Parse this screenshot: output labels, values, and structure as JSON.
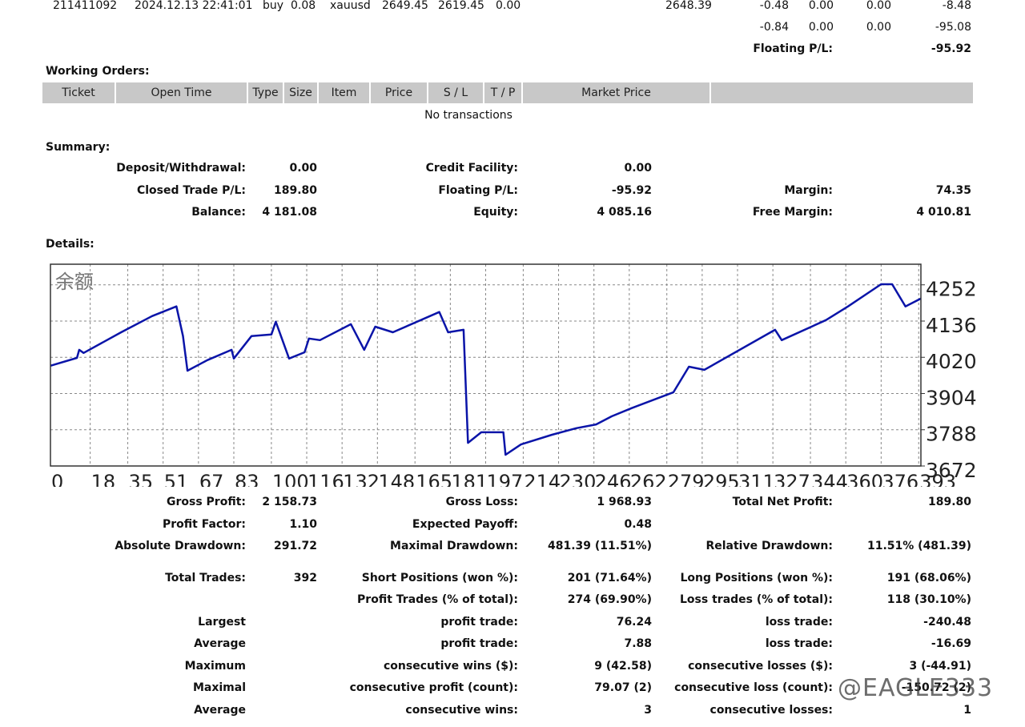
{
  "positions": {
    "row": [
      "211411092",
      "2024.12.13 22:41:01",
      "buy",
      "0.08",
      "xauusd",
      "2649.45",
      "2619.45",
      "0.00",
      "2648.39",
      "-0.48",
      "0.00",
      "0.00",
      "-8.48"
    ],
    "totals": [
      "-0.84",
      "0.00",
      "0.00",
      "-95.08"
    ],
    "floating": {
      "label": "Floating P/L:",
      "value": "-95.92"
    }
  },
  "working_orders": {
    "title": "Working Orders:",
    "headers": [
      "Ticket",
      "Open Time",
      "Type",
      "Size",
      "Item",
      "Price",
      "S / L",
      "T / P",
      "Market Price"
    ],
    "empty": "No transactions"
  },
  "summary": {
    "title": "Summary:",
    "rows": [
      {
        "left": [
          "Deposit/Withdrawal:",
          "0.00"
        ],
        "middle": [
          "Credit Facility:",
          "0.00"
        ]
      },
      {
        "left": [
          "Closed Trade P/L:",
          "189.80"
        ],
        "middle": [
          "Floating P/L:",
          "-95.92"
        ],
        "right": [
          "Margin:",
          "74.35"
        ]
      },
      {
        "left": [
          "Balance:",
          "4 181.08"
        ],
        "middle": [
          "Equity:",
          "4 085.16"
        ],
        "right": [
          "Free Margin:",
          "4 010.81"
        ]
      }
    ]
  },
  "details": {
    "title": "Details:",
    "rows": [
      {
        "left": [
          "Gross Profit:",
          "2 158.73"
        ],
        "middle": [
          "Gross Loss:",
          "1 968.93"
        ],
        "right": [
          "Total Net Profit:",
          "189.80"
        ]
      },
      {
        "left": [
          "Profit Factor:",
          "1.10"
        ],
        "middle": [
          "Expected Payoff:",
          "0.48"
        ]
      },
      {
        "left": [
          "Absolute Drawdown:",
          "291.72"
        ],
        "middle": [
          "Maximal Drawdown:",
          "481.39 (11.51%)"
        ],
        "right": [
          "Relative Drawdown:",
          "11.51% (481.39)"
        ]
      },
      {
        "left": [
          "Total Trades:",
          "392"
        ],
        "middle": [
          "Short Positions (won %):",
          "201 (71.64%)"
        ],
        "right": [
          "Long Positions (won %):",
          "191 (68.06%)"
        ]
      },
      {
        "middle": [
          "Profit Trades (% of total):",
          "274 (69.90%)"
        ],
        "right": [
          "Loss trades (% of total):",
          "118 (30.10%)"
        ]
      },
      {
        "left": [
          "Largest"
        ],
        "middle": [
          "profit trade:",
          "76.24"
        ],
        "right": [
          "loss trade:",
          "-240.48"
        ]
      },
      {
        "left": [
          "Average"
        ],
        "middle": [
          "profit trade:",
          "7.88"
        ],
        "right": [
          "loss trade:",
          "-16.69"
        ]
      },
      {
        "left": [
          "Maximum"
        ],
        "middle": [
          "consecutive wins ($):",
          "9 (42.58)"
        ],
        "right": [
          "consecutive losses ($):",
          "3 (-44.91)"
        ]
      },
      {
        "left": [
          "Maximal"
        ],
        "middle": [
          "consecutive profit (count):",
          "79.07 (2)"
        ],
        "right": [
          "consecutive loss (count):",
          "-150.72 (2)"
        ]
      },
      {
        "left": [
          "Average"
        ],
        "middle": [
          "consecutive wins:",
          "3"
        ],
        "right": [
          "consecutive losses:",
          "1"
        ]
      }
    ]
  },
  "chart_data": {
    "type": "line",
    "title": "余额",
    "color": "#0a14a8",
    "x": [
      0,
      12,
      13,
      15,
      32,
      46,
      57,
      60,
      62,
      71,
      82,
      83,
      91,
      100,
      102,
      105,
      108,
      115,
      117,
      122,
      136,
      142,
      147,
      155,
      176,
      180,
      187,
      189,
      195,
      205,
      206,
      213,
      227,
      238,
      247,
      254,
      263,
      282,
      289,
      296,
      328,
      331,
      351,
      361,
      376,
      381,
      387,
      394
    ],
    "values": [
      3993,
      4018,
      4044,
      4034,
      4100,
      4152,
      4183,
      4088,
      3977,
      4011,
      4044,
      4016,
      4088,
      4093,
      4134,
      4075,
      4016,
      4036,
      4080,
      4075,
      4126,
      4044,
      4118,
      4100,
      4165,
      4100,
      4108,
      3746,
      3780,
      3780,
      3708,
      3741,
      3772,
      3793,
      3805,
      3831,
      3857,
      3908,
      3990,
      3980,
      4108,
      4075,
      4139,
      4183,
      4254,
      4254,
      4183,
      4208
    ],
    "xlim": [
      0,
      394
    ],
    "xticks": [
      0,
      18,
      35,
      51,
      67,
      83,
      100,
      116,
      132,
      148,
      165,
      181,
      197,
      214,
      230,
      246,
      262,
      279,
      295,
      311,
      327,
      344,
      360,
      376,
      393
    ],
    "ylim": [
      3672,
      4318
    ],
    "yticks": [
      3672,
      3788,
      3904,
      4020,
      4136,
      4252
    ],
    "grid": true
  },
  "watermark": "@EAGLE333"
}
